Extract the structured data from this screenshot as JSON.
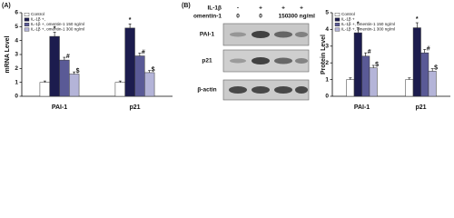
{
  "chart_data": [
    {
      "type": "bar",
      "panel_label": "(A)",
      "y_label": "mRNA Level",
      "categories": [
        "PAI-1",
        "p21"
      ],
      "ylim": [
        0,
        6
      ],
      "yticks": [
        0,
        1,
        2,
        3,
        4,
        5,
        6
      ],
      "legend": "upper left",
      "series": [
        {
          "name": "Control",
          "color": "#ffffff",
          "values": [
            1.0,
            1.0
          ],
          "errors": [
            0.1,
            0.1
          ]
        },
        {
          "name": "IL-1β +,",
          "color": "#1c1c4e",
          "values": [
            4.3,
            4.9
          ],
          "errors": [
            0.3,
            0.3
          ],
          "annotation": "*"
        },
        {
          "name": "IL-1β +, omentin-1 150 ng/ml",
          "color": "#5a5a96",
          "values": [
            2.6,
            2.9
          ],
          "errors": [
            0.2,
            0.2
          ],
          "annotation": "#"
        },
        {
          "name": "IL-1β +, omentin-1 300 ng/ml",
          "color": "#b4b4d8",
          "values": [
            1.6,
            1.7
          ],
          "errors": [
            0.15,
            0.15
          ],
          "annotation": "$"
        }
      ]
    },
    {
      "type": "bar",
      "y_label": "Protein Level",
      "categories": [
        "PAI-1",
        "p21"
      ],
      "ylim": [
        0,
        5
      ],
      "yticks": [
        0,
        1,
        2,
        3,
        4,
        5
      ],
      "legend": "upper left",
      "series": [
        {
          "name": "Control",
          "color": "#ffffff",
          "values": [
            1.0,
            1.0
          ],
          "errors": [
            0.1,
            0.1
          ]
        },
        {
          "name": "IL-1β +",
          "color": "#1c1c4e",
          "values": [
            3.8,
            4.1
          ],
          "errors": [
            0.3,
            0.3
          ],
          "annotation": "*"
        },
        {
          "name": "IL-1β +, omentin-1 150 ng/ml",
          "color": "#5a5a96",
          "values": [
            2.4,
            2.6
          ],
          "errors": [
            0.2,
            0.2
          ],
          "annotation": "#"
        },
        {
          "name": "IL-1β +, omentin-1 300 ng/ml",
          "color": "#b4b4d8",
          "values": [
            1.7,
            1.5
          ],
          "errors": [
            0.15,
            0.15
          ],
          "annotation": "$"
        }
      ]
    }
  ],
  "blot": {
    "panel_label": "(B)",
    "treatments": [
      {
        "name": "IL-1β",
        "levels": [
          "-",
          "+",
          "+",
          "+"
        ]
      },
      {
        "name": "omentin-1",
        "levels": [
          "0",
          "0",
          "150",
          "300 ng/ml"
        ]
      }
    ],
    "rows": [
      "PAI-1",
      "p21",
      "β-actin"
    ]
  }
}
